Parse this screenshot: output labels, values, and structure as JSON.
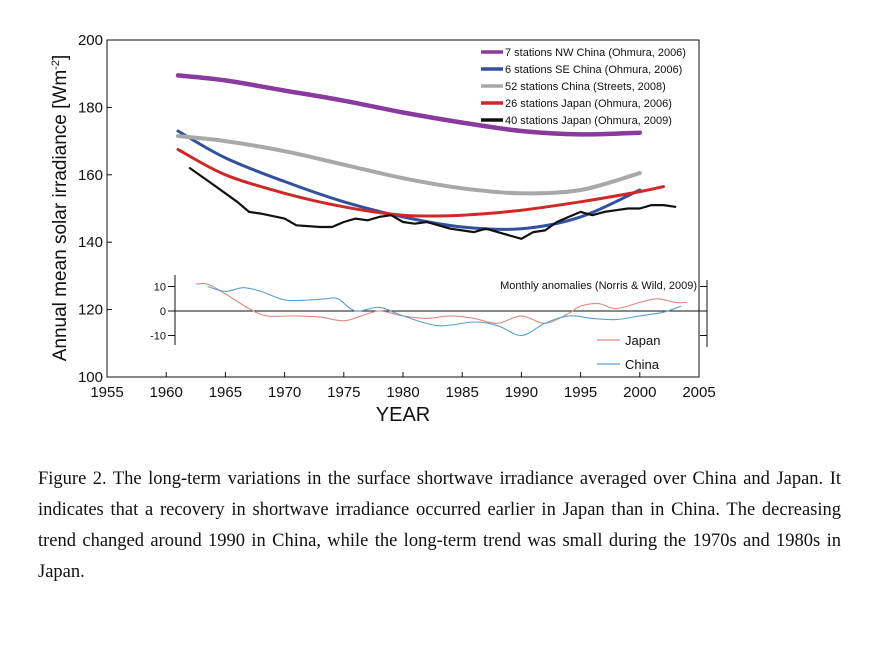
{
  "figure": {
    "caption": "Figure 2. The long-term variations in the surface shortwave irradiance averaged over China and Japan.  It indicates that a recovery in shortwave irradiance occurred earlier in Japan than in China.  The decreasing trend changed around 1990 in China, while the long-term trend was small during the 1970s and 1980s in Japan."
  },
  "chart_data": [
    {
      "type": "line",
      "xlabel": "YEAR",
      "ylabel": "Annual mean solar irradiance [Wm-2]",
      "ylabel_parts": {
        "main": "Annual mean solar irradiance [Wm",
        "sup": "-2",
        "close": "]"
      },
      "xlim": [
        1955,
        2005
      ],
      "ylim": [
        100,
        200
      ],
      "x_ticks": [
        "1955",
        "1960",
        "1965",
        "1970",
        "1975",
        "1980",
        "1985",
        "1990",
        "1995",
        "2000",
        "2005"
      ],
      "y_ticks": [
        "100",
        "120",
        "140",
        "160",
        "180",
        "200"
      ],
      "legend_position": "top-right",
      "series": [
        {
          "name": "7 stations NW China (Ohmura, 2006)",
          "color": "#8a3a9e",
          "width": 4.5,
          "points": [
            [
              1961,
              189.5
            ],
            [
              1965,
              188
            ],
            [
              1970,
              185
            ],
            [
              1975,
              182
            ],
            [
              1980,
              178.5
            ],
            [
              1985,
              175.5
            ],
            [
              1990,
              173
            ],
            [
              1995,
              172
            ],
            [
              2000,
              172.5
            ]
          ]
        },
        {
          "name": "6 stations SE China (Ohmura, 2006)",
          "color": "#3150a0",
          "width": 3,
          "points": [
            [
              1961,
              173
            ],
            [
              1965,
              165
            ],
            [
              1970,
              158
            ],
            [
              1975,
              152
            ],
            [
              1980,
              147.5
            ],
            [
              1985,
              144.5
            ],
            [
              1990,
              144
            ],
            [
              1995,
              147.5
            ],
            [
              2000,
              155.5
            ]
          ]
        },
        {
          "name": "52 stations China (Streets, 2008)",
          "color": "#a8a8a8",
          "width": 4,
          "points": [
            [
              1961,
              171.5
            ],
            [
              1965,
              170
            ],
            [
              1970,
              167
            ],
            [
              1975,
              163
            ],
            [
              1980,
              159
            ],
            [
              1985,
              156
            ],
            [
              1990,
              154.5
            ],
            [
              1995,
              155.5
            ],
            [
              2000,
              160.5
            ]
          ]
        },
        {
          "name": "26 stations Japan (Ohmura, 2006)",
          "color": "#d02828",
          "width": 3,
          "points": [
            [
              1961,
              167.5
            ],
            [
              1965,
              160
            ],
            [
              1970,
              154.5
            ],
            [
              1975,
              150.5
            ],
            [
              1980,
              148
            ],
            [
              1985,
              148
            ],
            [
              1990,
              149.5
            ],
            [
              1995,
              152
            ],
            [
              2000,
              155
            ],
            [
              2002,
              156.5
            ]
          ]
        },
        {
          "name": "40 stations Japan (Ohmura, 2009)",
          "color": "#111111",
          "width": 2.2,
          "points": [
            [
              1962,
              162
            ],
            [
              1964,
              157
            ],
            [
              1966,
              152
            ],
            [
              1967,
              149
            ],
            [
              1968,
              148.5
            ],
            [
              1970,
              147
            ],
            [
              1971,
              145
            ],
            [
              1973,
              144.5
            ],
            [
              1974,
              144.5
            ],
            [
              1975,
              146
            ],
            [
              1976,
              147
            ],
            [
              1977,
              146.5
            ],
            [
              1978,
              147.5
            ],
            [
              1979,
              148
            ],
            [
              1980,
              146
            ],
            [
              1981,
              145.5
            ],
            [
              1982,
              146
            ],
            [
              1983,
              145
            ],
            [
              1984,
              144
            ],
            [
              1985,
              143.5
            ],
            [
              1986,
              143
            ],
            [
              1987,
              144
            ],
            [
              1988,
              143
            ],
            [
              1989,
              142
            ],
            [
              1990,
              141
            ],
            [
              1991,
              143
            ],
            [
              1992,
              143.5
            ],
            [
              1993,
              146
            ],
            [
              1994,
              147.5
            ],
            [
              1995,
              149
            ],
            [
              1996,
              148
            ],
            [
              1997,
              149
            ],
            [
              1998,
              149.5
            ],
            [
              1999,
              150
            ],
            [
              2000,
              150
            ],
            [
              2001,
              151
            ],
            [
              2002,
              151
            ],
            [
              2003,
              150.5
            ]
          ]
        }
      ]
    },
    {
      "type": "line",
      "title": "Monthly anomalies (Norris & Wild, 2009)",
      "ylim": [
        -10,
        10
      ],
      "y_ticks": [
        "10",
        "0",
        "-10"
      ],
      "legend_position": "bottom-right",
      "series": [
        {
          "name": "Japan",
          "color": "#e08a80",
          "points": [
            [
              1962.5,
              11
            ],
            [
              1963.5,
              11
            ],
            [
              1965,
              7
            ],
            [
              1967,
              1
            ],
            [
              1968.5,
              -2
            ],
            [
              1971,
              -2
            ],
            [
              1973,
              -2.5
            ],
            [
              1975,
              -4
            ],
            [
              1976.5,
              -2
            ],
            [
              1978,
              0
            ],
            [
              1980,
              -2
            ],
            [
              1982,
              -3
            ],
            [
              1984,
              -2
            ],
            [
              1986,
              -3
            ],
            [
              1988,
              -5
            ],
            [
              1990,
              -2
            ],
            [
              1992,
              -5
            ],
            [
              1994,
              -1
            ],
            [
              1995,
              2
            ],
            [
              1996.5,
              3
            ],
            [
              1998,
              1
            ],
            [
              2000,
              3.5
            ],
            [
              2001.5,
              5
            ],
            [
              2003,
              3.5
            ],
            [
              2004,
              3.5
            ]
          ]
        },
        {
          "name": "China",
          "color": "#5aa0d0",
          "points": [
            [
              1963.5,
              10
            ],
            [
              1965,
              8
            ],
            [
              1966.5,
              9.5
            ],
            [
              1968,
              8
            ],
            [
              1970,
              4.5
            ],
            [
              1972,
              4.5
            ],
            [
              1973.5,
              5
            ],
            [
              1974.5,
              5
            ],
            [
              1976,
              0
            ],
            [
              1978,
              1.5
            ],
            [
              1980,
              -2
            ],
            [
              1983,
              -6
            ],
            [
              1986,
              -4.5
            ],
            [
              1988,
              -6
            ],
            [
              1990,
              -10
            ],
            [
              1992,
              -5
            ],
            [
              1994,
              -2
            ],
            [
              1996,
              -3
            ],
            [
              1998,
              -3.5
            ],
            [
              2000,
              -2
            ],
            [
              2002,
              -0.5
            ],
            [
              2003.5,
              2
            ]
          ]
        }
      ]
    }
  ]
}
